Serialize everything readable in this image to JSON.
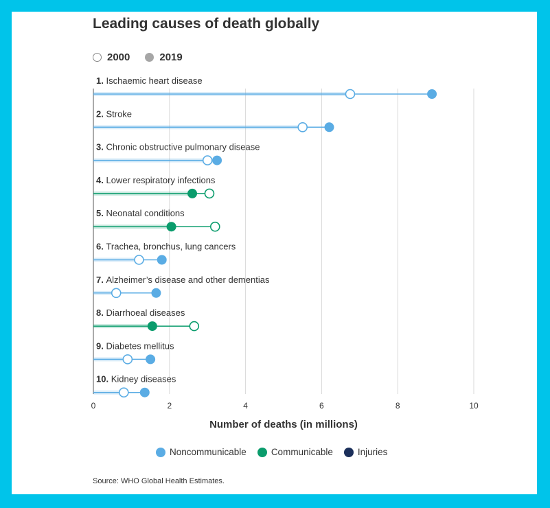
{
  "colors": {
    "Noncommunicable": "#5aace4",
    "Communicable": "#0a9c6c",
    "Injuries": "#1b2f5a",
    "frame": "#00c4ea"
  },
  "legend_years": {
    "hollow": "2000",
    "filled": "2019"
  },
  "chart_data": {
    "type": "dumbbell",
    "title": "Leading causes of death globally",
    "xlabel": "Number of deaths (in millions)",
    "xlim": [
      0,
      10
    ],
    "xticks": [
      "0",
      "2",
      "4",
      "6",
      "8",
      "10"
    ],
    "series_names": [
      "2000",
      "2019"
    ],
    "categories": [
      {
        "rank": "1.",
        "name": "Ischaemic heart disease",
        "group": "Noncommunicable",
        "y2000": 6.75,
        "y2019": 8.9
      },
      {
        "rank": "2.",
        "name": "Stroke",
        "group": "Noncommunicable",
        "y2000": 5.5,
        "y2019": 6.2
      },
      {
        "rank": "3.",
        "name": "Chronic obstructive pulmonary disease",
        "group": "Noncommunicable",
        "y2000": 3.0,
        "y2019": 3.25
      },
      {
        "rank": "4.",
        "name": "Lower respiratory infections",
        "group": "Communicable",
        "y2000": 3.05,
        "y2019": 2.6
      },
      {
        "rank": "5.",
        "name": "Neonatal conditions",
        "group": "Communicable",
        "y2000": 3.2,
        "y2019": 2.05
      },
      {
        "rank": "6.",
        "name": "Trachea, bronchus, lung cancers",
        "group": "Noncommunicable",
        "y2000": 1.2,
        "y2019": 1.8
      },
      {
        "rank": "7.",
        "name": "Alzheimer’s disease and other dementias",
        "group": "Noncommunicable",
        "y2000": 0.6,
        "y2019": 1.65
      },
      {
        "rank": "8.",
        "name": "Diarrhoeal diseases",
        "group": "Communicable",
        "y2000": 2.65,
        "y2019": 1.55
      },
      {
        "rank": "9.",
        "name": "Diabetes mellitus",
        "group": "Noncommunicable",
        "y2000": 0.9,
        "y2019": 1.5
      },
      {
        "rank": "10.",
        "name": "Kidney diseases",
        "group": "Noncommunicable",
        "y2000": 0.8,
        "y2019": 1.35
      }
    ],
    "legend": [
      "Noncommunicable",
      "Communicable",
      "Injuries"
    ],
    "grid": true
  },
  "source": "Source: WHO Global Health Estimates."
}
